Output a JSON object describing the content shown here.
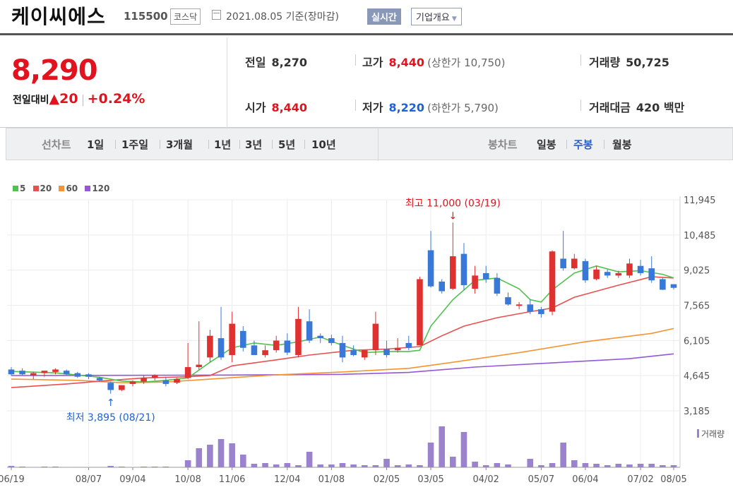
{
  "header": {
    "name": "케이씨에스",
    "code": "115500",
    "market": "코스닥",
    "date": "2021.08.05",
    "basis": "기준(장마감)",
    "realtime": "실시간",
    "overview": "기업개요"
  },
  "quote": {
    "price": "8,290",
    "change_label": "전일대비",
    "change": "20",
    "change_pct": "+0.24%",
    "prev_label": "전일",
    "prev": "8,270",
    "open_label": "시가",
    "open": "8,440",
    "high_label": "고가",
    "high": "8,440",
    "upper_limit": "(상한가 10,750)",
    "low_label": "저가",
    "low": "8,220",
    "lower_limit": "(하한가 5,790)",
    "volume_label": "거래량",
    "volume": "50,725",
    "amount_label": "거래대금",
    "amount": "420 백만"
  },
  "periods": {
    "line_label": "선차트",
    "line": [
      "1일",
      "1주일",
      "3개월",
      "1년",
      "3년",
      "5년",
      "10년"
    ],
    "candle_label": "봉차트",
    "candle": [
      "일봉",
      "주봉",
      "월봉"
    ],
    "selected": "주봉"
  },
  "colors": {
    "up": "#e03131",
    "down": "#3a78d8",
    "ma5": "#4fc14f",
    "ma20": "#e94f4f",
    "ma60": "#f59332",
    "ma120": "#9357d8",
    "volume": "#9a82cc"
  },
  "chart_data": {
    "type": "candlestick",
    "legend": [
      "5",
      "20",
      "60",
      "120"
    ],
    "y_ticks": [
      "11,945",
      "10,485",
      "9,025",
      "7,565",
      "6,105",
      "4,645",
      "3,185"
    ],
    "ylim": [
      3185,
      11945
    ],
    "x_ticks": [
      "06/19",
      "08/07",
      "09/04",
      "10/08",
      "11/06",
      "12/04",
      "01/08",
      "02/05",
      "03/05",
      "04/02",
      "05/07",
      "06/04",
      "07/02",
      "08/05"
    ],
    "max_label": "최고 11,000 (03/19)",
    "min_label": "최저 3,895 (08/21)",
    "volume_label": "거래량",
    "candles": [
      {
        "o": 4900,
        "h": 5000,
        "l": 4650,
        "c": 4700
      },
      {
        "o": 4850,
        "h": 4950,
        "l": 4650,
        "c": 4700
      },
      {
        "o": 4650,
        "h": 4800,
        "l": 4500,
        "c": 4750
      },
      {
        "o": 4750,
        "h": 4850,
        "l": 4600,
        "c": 4850
      },
      {
        "o": 4800,
        "h": 4950,
        "l": 4700,
        "c": 4900
      },
      {
        "o": 4850,
        "h": 4900,
        "l": 4650,
        "c": 4700
      },
      {
        "o": 4750,
        "h": 4800,
        "l": 4550,
        "c": 4600
      },
      {
        "o": 4700,
        "h": 4750,
        "l": 4500,
        "c": 4600
      },
      {
        "o": 4550,
        "h": 4600,
        "l": 4400,
        "c": 4450
      },
      {
        "o": 4350,
        "h": 4400,
        "l": 3895,
        "c": 4050
      },
      {
        "o": 4050,
        "h": 4250,
        "l": 4000,
        "c": 4250
      },
      {
        "o": 4300,
        "h": 4450,
        "l": 4200,
        "c": 4400
      },
      {
        "o": 4400,
        "h": 4650,
        "l": 4300,
        "c": 4550
      },
      {
        "o": 4550,
        "h": 4700,
        "l": 4450,
        "c": 4650
      },
      {
        "o": 4450,
        "h": 4600,
        "l": 4200,
        "c": 4300
      },
      {
        "o": 4350,
        "h": 4550,
        "l": 4300,
        "c": 4500
      },
      {
        "o": 4550,
        "h": 6000,
        "l": 4500,
        "c": 5000
      },
      {
        "o": 5000,
        "h": 6900,
        "l": 4900,
        "c": 5100
      },
      {
        "o": 5400,
        "h": 6550,
        "l": 5200,
        "c": 6300
      },
      {
        "o": 6200,
        "h": 7500,
        "l": 5300,
        "c": 5400
      },
      {
        "o": 5500,
        "h": 7300,
        "l": 5200,
        "c": 6800
      },
      {
        "o": 6500,
        "h": 6700,
        "l": 5650,
        "c": 5800
      },
      {
        "o": 5900,
        "h": 6100,
        "l": 5500,
        "c": 5500
      },
      {
        "o": 5500,
        "h": 5900,
        "l": 5400,
        "c": 5700
      },
      {
        "o": 5700,
        "h": 6300,
        "l": 5600,
        "c": 6100
      },
      {
        "o": 6100,
        "h": 6400,
        "l": 5500,
        "c": 5600
      },
      {
        "o": 5500,
        "h": 7500,
        "l": 5400,
        "c": 7000
      },
      {
        "o": 6900,
        "h": 7400,
        "l": 6000,
        "c": 6100
      },
      {
        "o": 6300,
        "h": 6400,
        "l": 6000,
        "c": 6200
      },
      {
        "o": 6200,
        "h": 6350,
        "l": 5900,
        "c": 6000
      },
      {
        "o": 6000,
        "h": 6300,
        "l": 5200,
        "c": 5400
      },
      {
        "o": 5700,
        "h": 5900,
        "l": 5450,
        "c": 5500
      },
      {
        "o": 5400,
        "h": 5700,
        "l": 5300,
        "c": 5700
      },
      {
        "o": 5700,
        "h": 7300,
        "l": 5500,
        "c": 6800
      },
      {
        "o": 5750,
        "h": 6100,
        "l": 5400,
        "c": 5500
      },
      {
        "o": 5700,
        "h": 6200,
        "l": 5600,
        "c": 5800
      },
      {
        "o": 6000,
        "h": 6300,
        "l": 5700,
        "c": 5800
      },
      {
        "o": 5900,
        "h": 8750,
        "l": 5900,
        "c": 8650
      },
      {
        "o": 9850,
        "h": 10650,
        "l": 8300,
        "c": 8350
      },
      {
        "o": 8550,
        "h": 8650,
        "l": 8050,
        "c": 8150
      },
      {
        "o": 8250,
        "h": 11000,
        "l": 8200,
        "c": 9600
      },
      {
        "o": 9700,
        "h": 10150,
        "l": 8200,
        "c": 8400
      },
      {
        "o": 8250,
        "h": 9200,
        "l": 8050,
        "c": 8800
      },
      {
        "o": 8900,
        "h": 9200,
        "l": 8500,
        "c": 8650
      },
      {
        "o": 8700,
        "h": 8900,
        "l": 7950,
        "c": 8050
      },
      {
        "o": 7900,
        "h": 8100,
        "l": 7550,
        "c": 7600
      },
      {
        "o": 7550,
        "h": 7700,
        "l": 7400,
        "c": 7600
      },
      {
        "o": 7600,
        "h": 7800,
        "l": 7200,
        "c": 7300
      },
      {
        "o": 7400,
        "h": 7500,
        "l": 7050,
        "c": 7200
      },
      {
        "o": 7300,
        "h": 9850,
        "l": 7150,
        "c": 9800
      },
      {
        "o": 9500,
        "h": 10650,
        "l": 9000,
        "c": 9100
      },
      {
        "o": 9100,
        "h": 9700,
        "l": 9050,
        "c": 9500
      },
      {
        "o": 9400,
        "h": 9500,
        "l": 8500,
        "c": 8600
      },
      {
        "o": 8650,
        "h": 9200,
        "l": 8600,
        "c": 9050
      },
      {
        "o": 8950,
        "h": 9050,
        "l": 8700,
        "c": 8800
      },
      {
        "o": 8800,
        "h": 9000,
        "l": 8700,
        "c": 8900
      },
      {
        "o": 8800,
        "h": 9500,
        "l": 8700,
        "c": 9300
      },
      {
        "o": 9200,
        "h": 9450,
        "l": 8800,
        "c": 8900
      },
      {
        "o": 9100,
        "h": 9600,
        "l": 8500,
        "c": 8600
      },
      {
        "o": 8650,
        "h": 8700,
        "l": 8200,
        "c": 8210
      },
      {
        "o": 8440,
        "h": 8440,
        "l": 8220,
        "c": 8290
      }
    ],
    "ma5": [
      [
        0,
        4820
      ],
      [
        4,
        4760
      ],
      [
        8,
        4580
      ],
      [
        10,
        4420
      ],
      [
        12,
        4380
      ],
      [
        14,
        4450
      ],
      [
        16,
        4550
      ],
      [
        18,
        5200
      ],
      [
        20,
        5800
      ],
      [
        22,
        6000
      ],
      [
        24,
        5900
      ],
      [
        26,
        6050
      ],
      [
        28,
        6250
      ],
      [
        30,
        5900
      ],
      [
        32,
        5600
      ],
      [
        34,
        5650
      ],
      [
        36,
        5650
      ],
      [
        37,
        5700
      ],
      [
        38,
        6700
      ],
      [
        40,
        7800
      ],
      [
        42,
        8600
      ],
      [
        44,
        8700
      ],
      [
        46,
        8250
      ],
      [
        47,
        7800
      ],
      [
        48,
        7700
      ],
      [
        49,
        8200
      ],
      [
        51,
        8900
      ],
      [
        53,
        9200
      ],
      [
        55,
        8950
      ],
      [
        57,
        9000
      ],
      [
        59,
        8850
      ],
      [
        60,
        8700
      ]
    ],
    "ma20": [
      [
        0,
        4150
      ],
      [
        5,
        4300
      ],
      [
        9,
        4450
      ],
      [
        12,
        4550
      ],
      [
        16,
        4600
      ],
      [
        18,
        4650
      ],
      [
        20,
        5050
      ],
      [
        24,
        5300
      ],
      [
        27,
        5500
      ],
      [
        31,
        5700
      ],
      [
        34,
        5750
      ],
      [
        37,
        5850
      ],
      [
        39,
        6300
      ],
      [
        41,
        6700
      ],
      [
        44,
        7050
      ],
      [
        47,
        7300
      ],
      [
        49,
        7450
      ],
      [
        51,
        7900
      ],
      [
        55,
        8400
      ],
      [
        58,
        8750
      ],
      [
        60,
        8700
      ]
    ],
    "ma60": [
      [
        0,
        4500
      ],
      [
        6,
        4450
      ],
      [
        10,
        4350
      ],
      [
        14,
        4380
      ],
      [
        18,
        4500
      ],
      [
        24,
        4680
      ],
      [
        30,
        4800
      ],
      [
        36,
        4950
      ],
      [
        40,
        5200
      ],
      [
        46,
        5600
      ],
      [
        52,
        6050
      ],
      [
        58,
        6400
      ],
      [
        60,
        6600
      ]
    ],
    "ma120": [
      [
        0,
        4650
      ],
      [
        10,
        4660
      ],
      [
        20,
        4670
      ],
      [
        30,
        4700
      ],
      [
        36,
        4780
      ],
      [
        42,
        5000
      ],
      [
        50,
        5200
      ],
      [
        56,
        5350
      ],
      [
        60,
        5550
      ]
    ],
    "volume": [
      2,
      1,
      0,
      1,
      1,
      0,
      0,
      0,
      0,
      2,
      1,
      0,
      1,
      1,
      1,
      0,
      10,
      27,
      32,
      40,
      34,
      18,
      5,
      6,
      4,
      6,
      3,
      22,
      4,
      4,
      6,
      4,
      3,
      3,
      12,
      3,
      4,
      3,
      35,
      58,
      15,
      50,
      8,
      3,
      6,
      4,
      0,
      12,
      3,
      6,
      35,
      10,
      6,
      5,
      3,
      5,
      4,
      5,
      5,
      3,
      3
    ]
  }
}
